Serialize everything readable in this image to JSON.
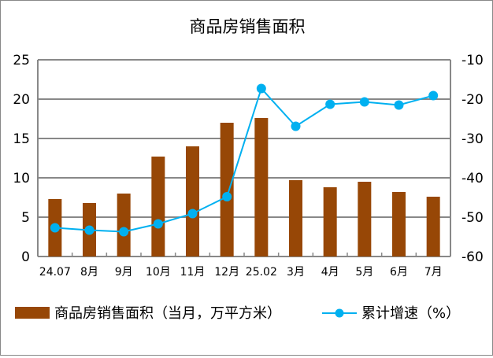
{
  "chart_data": {
    "type": "bar+line",
    "title": "商品房销售面积",
    "categories": [
      "24.07",
      "8月",
      "9月",
      "10月",
      "11月",
      "12月",
      "25.02",
      "3月",
      "4月",
      "5月",
      "6月",
      "7月"
    ],
    "series": [
      {
        "name": "商品房销售面积（当月，万平方米）",
        "type": "bar",
        "axis": "left",
        "color": "#974706",
        "values": [
          7.3,
          6.8,
          8.0,
          12.7,
          14.0,
          17.0,
          17.6,
          9.7,
          8.8,
          9.5,
          8.2,
          7.6
        ]
      },
      {
        "name": "累计增速（%）",
        "type": "line",
        "axis": "right",
        "color": "#00B0F0",
        "values": [
          -52.7,
          -53.3,
          -53.7,
          -51.7,
          -49.1,
          -44.8,
          -17.3,
          -26.9,
          -21.3,
          -20.7,
          -21.5,
          -19.1
        ]
      }
    ],
    "left_axis": {
      "range": [
        0,
        25
      ],
      "ticks": [
        "0",
        "5",
        "10",
        "15",
        "20",
        "25"
      ]
    },
    "right_axis": {
      "range": [
        -60,
        -10
      ],
      "ticks": [
        "-60",
        "-50",
        "-40",
        "-30",
        "-20",
        "-10"
      ]
    },
    "grid": true,
    "legend_position": "bottom"
  }
}
